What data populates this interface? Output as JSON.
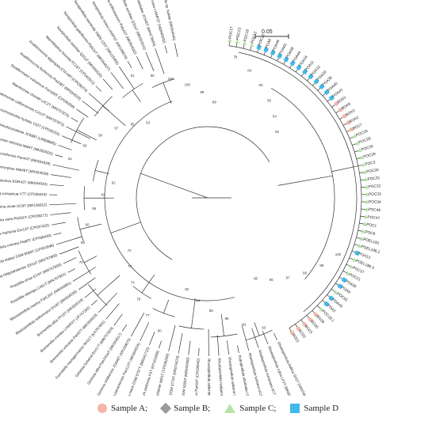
{
  "colors": {
    "sample_a": "#f4b6a6",
    "sample_b": "#9b9b9b",
    "sample_c": "#b7e4a6",
    "sample_d": "#41b8ea",
    "branch": "#333333"
  },
  "scale_bar": {
    "label": "0.05"
  },
  "legend": [
    {
      "key": "sample_a",
      "label": "Sample A;",
      "shape": "circle"
    },
    {
      "key": "sample_b",
      "label": "Sample B;",
      "shape": "diamond"
    },
    {
      "key": "sample_c",
      "label": "Sample C;",
      "shape": "triangle"
    },
    {
      "key": "sample_d",
      "label": "Sample D",
      "shape": "square"
    }
  ],
  "isolates": [
    {
      "label": "POC17",
      "sample": "sample_c"
    },
    {
      "label": "POC23",
      "sample": "sample_c"
    },
    {
      "label": "POC18",
      "sample": "sample_c"
    },
    {
      "label": "POC12",
      "sample": "sample_c"
    },
    {
      "label": "POC22",
      "sample": "sample_d"
    },
    {
      "label": "POA6",
      "sample": "sample_d"
    },
    {
      "label": "POA68",
      "sample": "sample_d"
    },
    {
      "label": "POA61",
      "sample": "sample_d"
    },
    {
      "label": "POA58",
      "sample": "sample_d"
    },
    {
      "label": "POA44",
      "sample": "sample_d"
    },
    {
      "label": "POA34",
      "sample": "sample_d"
    },
    {
      "label": "POA11",
      "sample": "sample_d"
    },
    {
      "label": "POA12",
      "sample": "sample_d"
    },
    {
      "label": "POA29",
      "sample": "sample_d"
    },
    {
      "label": "POA39",
      "sample": "sample_d"
    },
    {
      "label": "POA40",
      "sample": "sample_d"
    },
    {
      "label": "POA41",
      "sample": "sample_d"
    },
    {
      "label": "BOA1",
      "sample": "sample_a"
    },
    {
      "label": "BOA5",
      "sample": "sample_a"
    },
    {
      "label": "BOA3",
      "sample": "sample_a"
    },
    {
      "label": "BOA2",
      "sample": "sample_a"
    },
    {
      "label": "BO17",
      "sample": "sample_a"
    },
    {
      "label": "POC25",
      "sample": "sample_c"
    },
    {
      "label": "POC28",
      "sample": "sample_c"
    },
    {
      "label": "POC26",
      "sample": "sample_c"
    },
    {
      "label": "POC29",
      "sample": "sample_c"
    },
    {
      "label": "POC3",
      "sample": "sample_c"
    },
    {
      "label": "POC30",
      "sample": "sample_c"
    },
    {
      "label": "POC31",
      "sample": "sample_c"
    },
    {
      "label": "POC32",
      "sample": "sample_c"
    },
    {
      "label": "POC33",
      "sample": "sample_c"
    },
    {
      "label": "POC34",
      "sample": "sample_c"
    },
    {
      "label": "POC46",
      "sample": "sample_c"
    },
    {
      "label": "POC47",
      "sample": "sample_c"
    },
    {
      "label": "POC1",
      "sample": "sample_c"
    },
    {
      "label": "POC8",
      "sample": "sample_c"
    },
    {
      "label": "POEL181",
      "sample": "sample_c"
    },
    {
      "label": "POEL186.2",
      "sample": "sample_c"
    },
    {
      "label": "POA13",
      "sample": "sample_d"
    },
    {
      "label": "POEL186.3",
      "sample": "sample_c"
    },
    {
      "label": "POC27",
      "sample": "sample_c"
    },
    {
      "label": "POC21",
      "sample": "sample_c"
    },
    {
      "label": "POA30",
      "sample": "sample_d"
    },
    {
      "label": "POA9",
      "sample": "sample_d"
    },
    {
      "label": "POC62",
      "sample": "sample_c"
    },
    {
      "label": "POA43",
      "sample": "sample_d"
    },
    {
      "label": "POA2",
      "sample": "sample_d"
    },
    {
      "label": "POC18.1",
      "sample": "sample_c"
    },
    {
      "label": "BO29",
      "sample": "sample_a"
    },
    {
      "label": "BO30",
      "sample": "sample_a"
    },
    {
      "label": "BO23",
      "sample": "sample_a"
    },
    {
      "label": "BO22",
      "sample": "sample_a"
    },
    {
      "label": "BO21",
      "sample": "sample_a"
    }
  ],
  "references": [
    "Rhodopirellula baltica SH1T (NR074836)",
    "Rhodopirellula rubra LF2T (MN901347)",
    "Rhodopirellula europaea 6CT (NR043439)",
    "Rhodopirellula lusitana UC17T (NR108279)",
    "Rubripirellula obstinata LF1T (NR149295)",
    "Rhodopirellula solitaria UC49T (NR108280)",
    "Rhodopirellula heiligendammensis Pla8T",
    "Rhodopirellula sallentina SM41T (AJ717397)",
    "Rubinisphaera italica Pan54T (CP036342)",
    "Rubinisphaera brasiliensis DSM 5305T (NR043430)",
    "Planctopirus limnophila DSM 3776T (NR074670)",
    "Planctopirus ephydatiae spb1T (CP036299)",
    "Planctomicrobium piriforme P3T (KF161656)",
    "Gimesia maris DSM 8797T (NR041722)",
    "Gimesia panareensis Pan110T (MK554524)",
    "Gimesia chilikensis JC646T (KR150675)",
    "Gimesia alba Pan241wT (MK554517)",
    "Gimesia fumaroli Enr17T (MN757824)",
    "Fuerstiella marisgermanici NH11T (KX757801)",
    "Bremerella volcania Pan97T (MK554529)",
    "Bremerella cremea LHWP2T (JF747292)",
    "Bremerella alba FF15T (MK554519)",
    "Blastopirellula retiformator Enr8T (MK554530)",
    "Blastopirellula marina FWC20T (NR040901)",
    "Rosistilla oblonga CA51T (MN757861)",
    "Rosistilla ulvae EC9T (MN757859)",
    "Aureliella helgolandensis Q31aT (MN757863)",
    "Pirellula staleyi DSM 6068T (CP001848)",
    "Lignipirellula cremea Pla85T (CP036433)",
    "Stieleria neptunia Enr13T (CP037423)",
    "Stieleria varia Pla52nT (CP036271)",
    "Roseimaritima ulvae UC8T (NR136812)",
    "Crateriforma conspicua V7T (CP036319)",
    "Thalassoglobus neptunius KOR42T (MK554543)",
    "Thalassoglobus polymorphus Mal48T (MK554528)",
    "Caulifigura coniformis Pan44T (MK554539)",
    "Maioricimonas rarisocia Mal4T (MK554532)",
    "Thalassoroseus pseudoceratinae JC658T (LR898895)",
    "Calycomorphotria hydatis V22T (CP036316)",
    "Aleodemonas californiensis CA12T (MN757873)",
    "Alienimonas chondri LzC2T (MN757875)",
    "Stratiformator vulcanicus Pan189T (CP036268)",
    "Anatilimnocola floriformis Pla108T (MK554523)",
    "Anatilimnocola aggregata ETA A8T (CP036274)",
    "Mariniblastus fucicola FC18T (CP042912)",
    "Novipirellula aureliae Q31aT (MK554520)",
    "Novipirellula galeiformis Pla52oT (MK554537)",
    "Novipirellula caenicola YM26-125T (NR125455)",
    "Novipirellula rosea LHWP3T (NR109570)",
    "Novipirellula artificiosorum Poly41T (MK554533)",
    "Novipirellula aureliae Q31aT (MK554541)",
    "Rhodopirellula halodulae JC645T (MH473594)",
    "Rhodopirellula rosea LHWP3T (HQ845500)",
    "Rhodopirellula sp. isolate (MK554545)"
  ],
  "bootstrap_values": [
    "100",
    "99",
    "98",
    "97",
    "96",
    "95",
    "93",
    "91",
    "88",
    "85",
    "84",
    "82",
    "80",
    "77",
    "76",
    "74",
    "73",
    "72",
    "70",
    "68",
    "66",
    "65",
    "63",
    "62",
    "61",
    "59",
    "58",
    "57",
    "55",
    "53",
    "51",
    "50",
    "100",
    "100",
    "99",
    "89",
    "78",
    "64",
    "60",
    "56",
    "54",
    "52"
  ]
}
